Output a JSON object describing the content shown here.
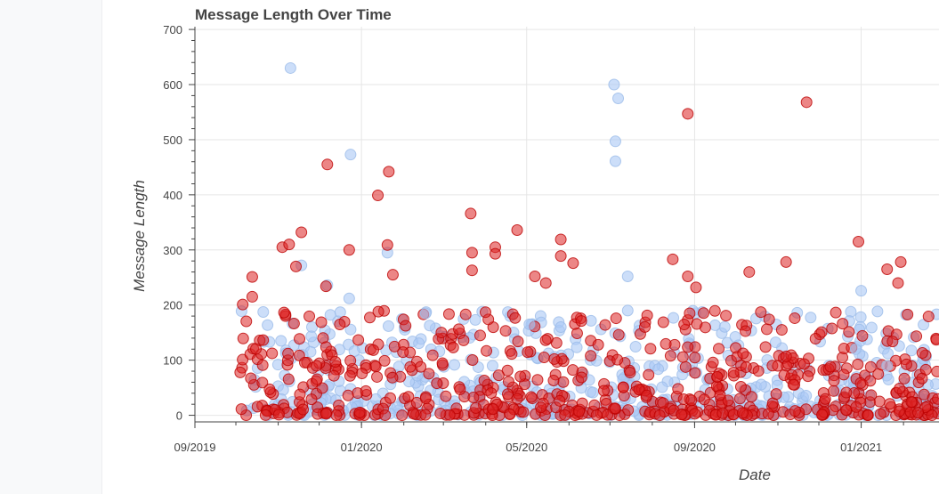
{
  "chart_data": {
    "type": "scatter",
    "title": "Message Length Over Time",
    "xlabel": "Date",
    "ylabel": "Message Length",
    "x_type": "datetime",
    "xlim": [
      "2019-09-01",
      "2021-02-27"
    ],
    "ylim": [
      -12,
      705
    ],
    "x_ticks": [
      {
        "date": "2019-09-01",
        "label": "09/2019"
      },
      {
        "date": "2020-01-01",
        "label": "01/2020"
      },
      {
        "date": "2020-05-01",
        "label": "05/2020"
      },
      {
        "date": "2020-09-01",
        "label": "09/2020"
      },
      {
        "date": "2021-01-01",
        "label": "01/2021"
      }
    ],
    "y_ticks": [
      0,
      100,
      200,
      300,
      400,
      500,
      600,
      700
    ],
    "grid": true,
    "legend": "none",
    "series": [
      {
        "color": "#aac8f5",
        "points": [
          {
            "x": "2019-11-10",
            "y": 630
          },
          {
            "x": "2019-11-18",
            "y": 272
          },
          {
            "x": "2019-12-07",
            "y": 236
          },
          {
            "x": "2019-12-24",
            "y": 473
          },
          {
            "x": "2019-12-23",
            "y": 212
          },
          {
            "x": "2020-01-20",
            "y": 295
          },
          {
            "x": "2020-02-17",
            "y": 185
          },
          {
            "x": "2020-05-03",
            "y": 165
          },
          {
            "x": "2020-05-26",
            "y": 160
          },
          {
            "x": "2020-07-04",
            "y": 600
          },
          {
            "x": "2020-07-05",
            "y": 497
          },
          {
            "x": "2020-07-05",
            "y": 461
          },
          {
            "x": "2020-07-07",
            "y": 575
          },
          {
            "x": "2020-07-14",
            "y": 252
          },
          {
            "x": "2020-07-14",
            "y": 190
          },
          {
            "x": "2021-01-01",
            "y": 226
          },
          {
            "x": "2020-12-28",
            "y": 120
          },
          {
            "x": "2021-01-20",
            "y": 90
          }
        ]
      },
      {
        "color": "#dd2222",
        "points": [
          {
            "x": "2019-10-06",
            "y": 201
          },
          {
            "x": "2019-10-13",
            "y": 251
          },
          {
            "x": "2019-10-13",
            "y": 215
          },
          {
            "x": "2019-11-04",
            "y": 305
          },
          {
            "x": "2019-11-09",
            "y": 310
          },
          {
            "x": "2019-11-18",
            "y": 332
          },
          {
            "x": "2019-11-14",
            "y": 270
          },
          {
            "x": "2019-12-06",
            "y": 234
          },
          {
            "x": "2019-12-07",
            "y": 455
          },
          {
            "x": "2019-12-23",
            "y": 300
          },
          {
            "x": "2020-01-13",
            "y": 399
          },
          {
            "x": "2020-01-21",
            "y": 442
          },
          {
            "x": "2020-01-20",
            "y": 309
          },
          {
            "x": "2020-01-24",
            "y": 255
          },
          {
            "x": "2020-03-21",
            "y": 366
          },
          {
            "x": "2020-03-22",
            "y": 295
          },
          {
            "x": "2020-03-22",
            "y": 263
          },
          {
            "x": "2020-04-08",
            "y": 305
          },
          {
            "x": "2020-04-08",
            "y": 293
          },
          {
            "x": "2020-04-24",
            "y": 336
          },
          {
            "x": "2020-05-07",
            "y": 252
          },
          {
            "x": "2020-05-15",
            "y": 240
          },
          {
            "x": "2020-05-26",
            "y": 319
          },
          {
            "x": "2020-05-26",
            "y": 289
          },
          {
            "x": "2020-06-04",
            "y": 276
          },
          {
            "x": "2020-08-16",
            "y": 283
          },
          {
            "x": "2020-08-27",
            "y": 547
          },
          {
            "x": "2020-08-27",
            "y": 252
          },
          {
            "x": "2020-09-02",
            "y": 232
          },
          {
            "x": "2020-10-11",
            "y": 260
          },
          {
            "x": "2020-11-07",
            "y": 278
          },
          {
            "x": "2020-11-22",
            "y": 568
          },
          {
            "x": "2020-12-30",
            "y": 315
          },
          {
            "x": "2021-01-20",
            "y": 265
          },
          {
            "x": "2021-01-28",
            "y": 240
          },
          {
            "x": "2021-01-30",
            "y": 278
          }
        ]
      }
    ],
    "dense_band": {
      "x_range": [
        "2019-10-04",
        "2021-02-27"
      ],
      "y_range": [
        0,
        190
      ],
      "series": [
        "#aac8f5",
        "#dd2222"
      ]
    }
  }
}
